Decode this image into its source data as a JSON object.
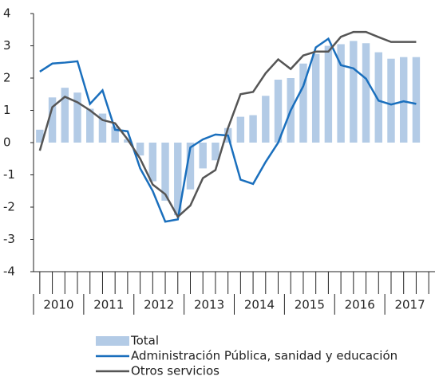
{
  "chart_data": {
    "type": "bar-line",
    "categories": [
      null,
      null,
      null,
      null,
      null,
      null,
      null,
      null,
      null,
      null,
      null,
      null,
      null,
      null,
      null,
      null,
      null,
      null,
      null,
      null,
      null,
      null,
      null,
      null,
      null,
      null,
      null,
      null,
      null,
      null,
      null
    ],
    "x_groups": [
      "2010",
      "2011",
      "2012",
      "2013",
      "2014",
      "2015",
      "2016",
      "2017"
    ],
    "series": [
      {
        "name": "Total",
        "kind": "bar",
        "color": "#b3cbe6",
        "values": [
          0.4,
          1.4,
          1.7,
          1.55,
          1.05,
          0.9,
          0.5,
          0.1,
          -0.4,
          -1.2,
          -1.8,
          -2.25,
          -1.45,
          -0.8,
          -0.55,
          0.45,
          0.8,
          0.85,
          1.45,
          1.95,
          2.0,
          2.45,
          2.75,
          3.0,
          3.05,
          3.15,
          3.08,
          2.8,
          2.6,
          2.65,
          2.65
        ]
      },
      {
        "name": "Administración Pública, sanidad y educación",
        "kind": "line",
        "color": "#1a6fbd",
        "values": [
          2.2,
          2.45,
          2.48,
          2.52,
          1.2,
          1.62,
          0.4,
          0.35,
          -0.8,
          -1.5,
          -2.45,
          -2.38,
          -0.15,
          0.1,
          0.25,
          0.22,
          -1.15,
          -1.28,
          -0.6,
          0.0,
          1.0,
          1.75,
          2.95,
          3.22,
          2.4,
          2.3,
          1.98,
          1.3,
          1.18,
          1.28,
          1.2
        ]
      },
      {
        "name": "Otros servicios",
        "kind": "line",
        "color": "#555555",
        "values": [
          -0.25,
          1.1,
          1.42,
          1.25,
          1.0,
          0.7,
          0.6,
          0.1,
          -0.5,
          -1.3,
          -1.6,
          -2.3,
          -1.95,
          -1.1,
          -0.85,
          0.45,
          1.5,
          1.57,
          2.15,
          2.58,
          2.28,
          2.7,
          2.82,
          2.82,
          3.28,
          3.43,
          3.43,
          3.27,
          3.12,
          3.12,
          3.12
        ]
      }
    ],
    "ylim": [
      -4,
      4
    ],
    "yticks": [
      -4,
      -3,
      -2,
      -1,
      0,
      1,
      2,
      3,
      4
    ],
    "grid": false
  }
}
